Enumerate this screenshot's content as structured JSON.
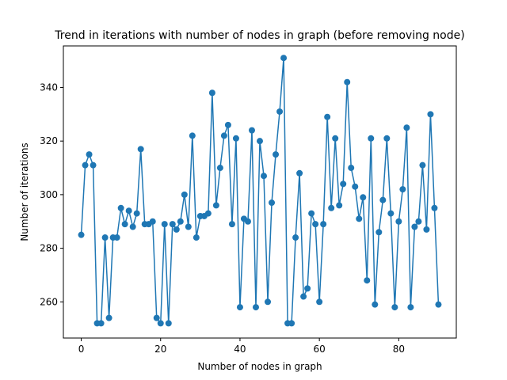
{
  "chart_data": {
    "type": "line",
    "title": "Trend in iterations with number of nodes in graph (before removing node)",
    "xlabel": "Number of nodes in graph",
    "ylabel": "Number of iterations",
    "xlim": [
      -4.5,
      94.5
    ],
    "ylim": [
      246.5,
      355.5
    ],
    "xticks": [
      0,
      20,
      40,
      60,
      80
    ],
    "yticks": [
      260,
      280,
      300,
      320,
      340
    ],
    "grid": false,
    "series_color": "#1f77b4",
    "marker": "circle",
    "series": [
      {
        "x": [
          0,
          1,
          2,
          3,
          4,
          5,
          6,
          7,
          8,
          9,
          10,
          11,
          12,
          13,
          14,
          15,
          16,
          17,
          18,
          19,
          20,
          21,
          22,
          23,
          24,
          25,
          26,
          27,
          28,
          29,
          30,
          31,
          32,
          33,
          34,
          35,
          36,
          37,
          38,
          39,
          40,
          41,
          42,
          43,
          44,
          45,
          46,
          47,
          48,
          49,
          50,
          51,
          52,
          53,
          54,
          55,
          56,
          57,
          58,
          59,
          60,
          61,
          62,
          63,
          64,
          65,
          66,
          67,
          68,
          69,
          70,
          71,
          72,
          73,
          74,
          75,
          76,
          77,
          78,
          79,
          80,
          81,
          82,
          83,
          84,
          85,
          86,
          87,
          88,
          89,
          90
        ],
        "values": [
          285,
          311,
          315,
          311,
          252,
          252,
          284,
          254,
          284,
          284,
          295,
          289,
          294,
          288,
          293,
          317,
          289,
          289,
          290,
          254,
          252,
          289,
          252,
          289,
          287,
          290,
          300,
          288,
          322,
          284,
          292,
          292,
          293,
          338,
          296,
          310,
          322,
          326,
          289,
          321,
          258,
          291,
          290,
          324,
          258,
          320,
          307,
          260,
          297,
          315,
          331,
          351,
          252,
          252,
          284,
          308,
          262,
          265,
          293,
          289,
          260,
          289,
          329,
          295,
          321,
          296,
          304,
          342,
          310,
          303,
          291,
          299,
          268,
          321,
          259,
          286,
          298,
          321,
          293,
          258,
          290,
          302,
          325,
          258,
          288,
          290,
          311,
          287,
          330,
          295,
          259
        ]
      }
    ]
  }
}
